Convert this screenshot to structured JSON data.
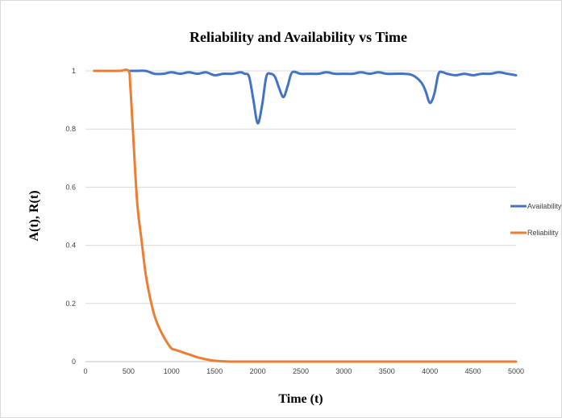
{
  "chart_data": {
    "type": "line",
    "title": "Reliability and Availability vs Time",
    "xlabel": "Time (t)",
    "ylabel": "A(t), R(t)",
    "xlim": [
      0,
      5000
    ],
    "ylim": [
      0,
      1
    ],
    "x_ticks": [
      "0",
      "500",
      "1000",
      "1500",
      "2000",
      "2500",
      "3000",
      "3500",
      "4000",
      "4500",
      "5000"
    ],
    "y_ticks": [
      "0",
      "0.2",
      "0.4",
      "0.6",
      "0.8",
      "1"
    ],
    "grid": true,
    "legend_position": "right",
    "series": [
      {
        "name": "Availability",
        "color": "#4472c4",
        "x": [
          500,
          600,
          700,
          800,
          900,
          1000,
          1100,
          1200,
          1300,
          1400,
          1500,
          1600,
          1700,
          1800,
          1850,
          1900,
          1950,
          2000,
          2050,
          2100,
          2150,
          2200,
          2250,
          2300,
          2350,
          2400,
          2500,
          2600,
          2700,
          2800,
          2900,
          3000,
          3100,
          3200,
          3300,
          3400,
          3500,
          3600,
          3700,
          3800,
          3900,
          3950,
          4000,
          4050,
          4100,
          4150,
          4200,
          4300,
          4400,
          4500,
          4600,
          4700,
          4800,
          4900,
          5000
        ],
        "y": [
          1.0,
          1.0,
          1.0,
          0.99,
          0.99,
          0.995,
          0.99,
          0.995,
          0.99,
          0.995,
          0.985,
          0.99,
          0.99,
          0.995,
          0.99,
          0.98,
          0.9,
          0.82,
          0.88,
          0.98,
          0.99,
          0.98,
          0.94,
          0.91,
          0.95,
          0.995,
          0.99,
          0.99,
          0.99,
          0.995,
          0.99,
          0.99,
          0.99,
          0.995,
          0.99,
          0.995,
          0.99,
          0.99,
          0.99,
          0.985,
          0.96,
          0.93,
          0.89,
          0.92,
          0.99,
          0.995,
          0.99,
          0.985,
          0.99,
          0.985,
          0.99,
          0.99,
          0.995,
          0.99,
          0.985
        ]
      },
      {
        "name": "Reliability",
        "color": "#ed7d31",
        "x": [
          100,
          200,
          300,
          400,
          500,
          520,
          550,
          600,
          650,
          700,
          750,
          800,
          850,
          900,
          950,
          1000,
          1050,
          1100,
          1200,
          1300,
          1400,
          1500,
          1600,
          1700,
          1800,
          2000,
          2500,
          3000,
          3500,
          4000,
          4500,
          5000
        ],
        "y": [
          1.0,
          1.0,
          1.0,
          1.0,
          1.0,
          0.95,
          0.8,
          0.55,
          0.42,
          0.3,
          0.22,
          0.16,
          0.12,
          0.09,
          0.065,
          0.045,
          0.04,
          0.035,
          0.025,
          0.015,
          0.008,
          0.003,
          0.001,
          0.0,
          0.0,
          0.0,
          0.0,
          0.0,
          0.0,
          0.0,
          0.0,
          0.0
        ]
      }
    ]
  }
}
